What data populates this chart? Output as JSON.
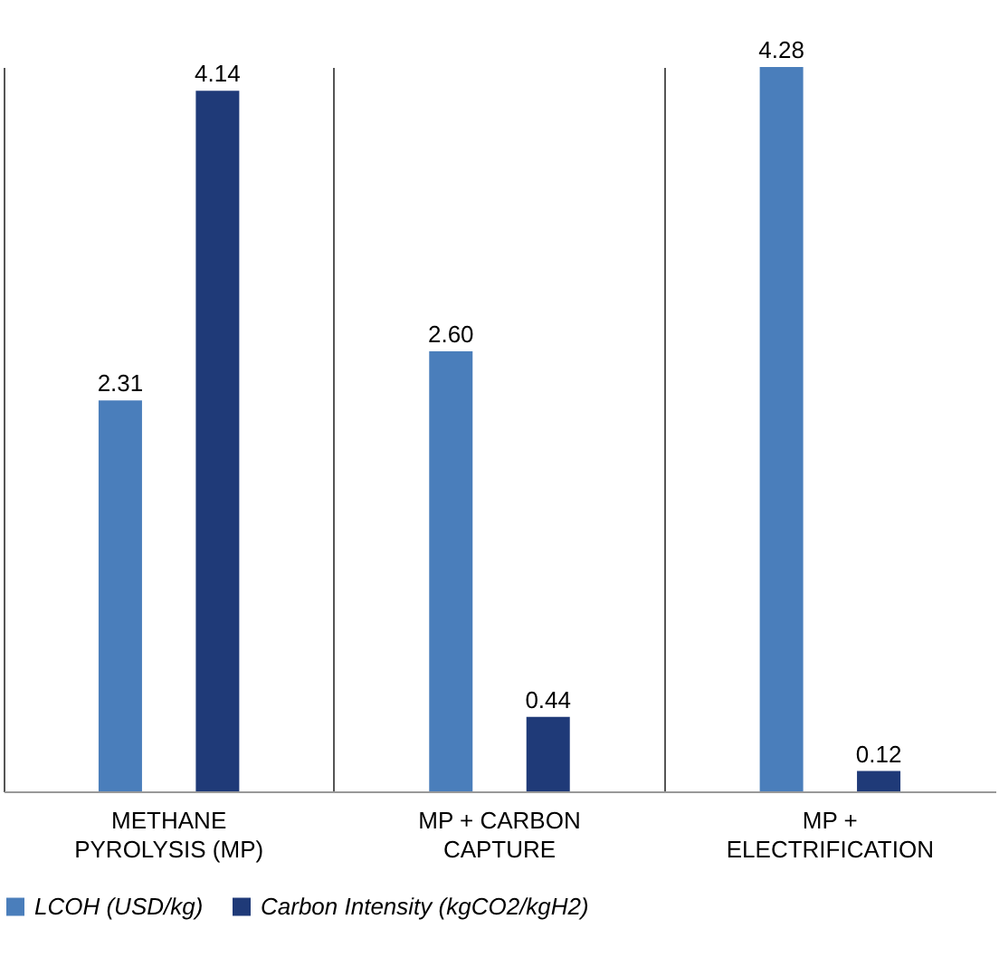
{
  "chart_data": {
    "type": "bar",
    "categories": [
      "METHANE PYROLYSIS (MP)",
      "MP + CARBON CAPTURE",
      "MP + ELECTRIFICATION"
    ],
    "series": [
      {
        "name": "LCOH (USD/kg)",
        "color": "#4a7ebb",
        "values": [
          2.31,
          2.6,
          4.28
        ],
        "value_labels": [
          "2.31",
          "2.60",
          "4.28"
        ]
      },
      {
        "name": "Carbon Intensity (kgCO2/kgH2)",
        "color": "#1f3a78",
        "values": [
          4.14,
          0.44,
          0.12
        ],
        "value_labels": [
          "4.14",
          "0.44",
          "0.12"
        ]
      }
    ],
    "grid": "x",
    "legend": "bottom"
  }
}
